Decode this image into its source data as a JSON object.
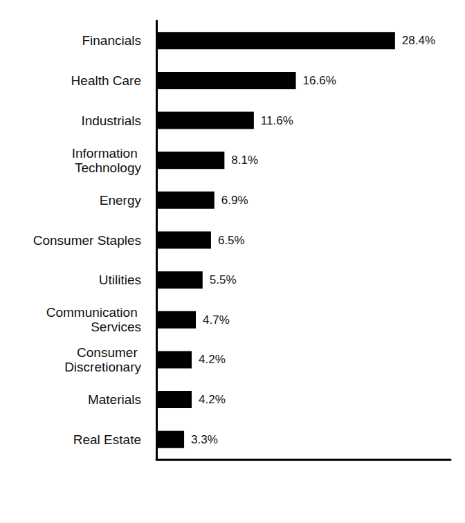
{
  "chart_data": {
    "type": "bar",
    "orientation": "horizontal",
    "categories": [
      "Financials",
      "Health Care",
      "Industrials",
      "Information Technology",
      "Energy",
      "Consumer Staples",
      "Utilities",
      "Communication Services",
      "Consumer Discretionary",
      "Materials",
      "Real Estate"
    ],
    "values": [
      28.4,
      16.6,
      11.6,
      8.1,
      6.9,
      6.5,
      5.5,
      4.7,
      4.2,
      4.2,
      3.3
    ],
    "value_labels": [
      "28.4%",
      "16.6%",
      "11.6%",
      "8.1%",
      "6.9%",
      "6.5%",
      "5.5%",
      "4.7%",
      "4.2%",
      "4.2%",
      "3.3%"
    ],
    "color": "#000000",
    "xlim": [
      0,
      35
    ],
    "grid": false,
    "data_labels": true,
    "tick_labels": "y"
  }
}
